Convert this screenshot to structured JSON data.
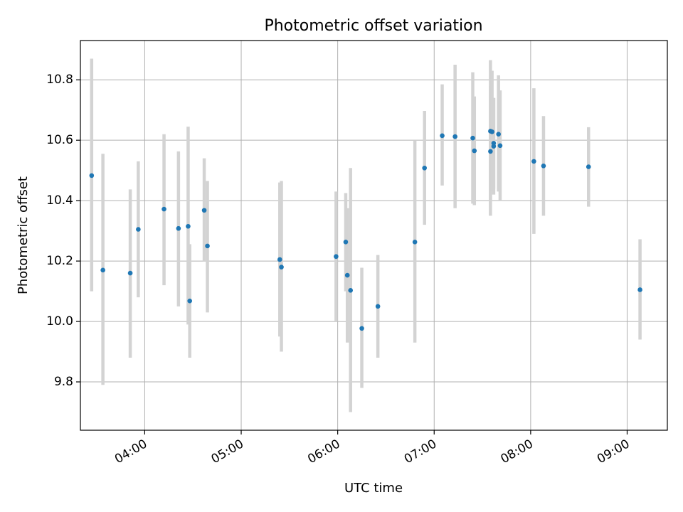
{
  "chart_data": {
    "type": "scatter",
    "title": "Photometric offset variation",
    "xlabel": "UTC time",
    "ylabel": "Photometric offset",
    "x_tick_labels": [
      "04:00",
      "05:00",
      "06:00",
      "07:00",
      "08:00",
      "09:00"
    ],
    "y_tick_labels": [
      "9.8",
      "10.0",
      "10.2",
      "10.4",
      "10.6",
      "10.8"
    ],
    "x_range": [
      "03:20",
      "09:25"
    ],
    "ylim": [
      9.64,
      10.93
    ],
    "grid": true,
    "marker_color": "#1f77b4",
    "errorbar_color": "#d3d3d3",
    "points": [
      {
        "x": "03:27",
        "y": 10.483,
        "ylo": 10.1,
        "yhi": 10.87
      },
      {
        "x": "03:34",
        "y": 10.17,
        "ylo": 9.79,
        "yhi": 10.555
      },
      {
        "x": "03:51",
        "y": 10.16,
        "ylo": 9.88,
        "yhi": 10.437
      },
      {
        "x": "03:56",
        "y": 10.305,
        "ylo": 10.08,
        "yhi": 10.53
      },
      {
        "x": "04:12",
        "y": 10.372,
        "ylo": 10.12,
        "yhi": 10.62
      },
      {
        "x": "04:21",
        "y": 10.308,
        "ylo": 10.05,
        "yhi": 10.563
      },
      {
        "x": "04:27",
        "y": 10.315,
        "ylo": 9.99,
        "yhi": 10.645
      },
      {
        "x": "04:28",
        "y": 10.068,
        "ylo": 9.88,
        "yhi": 10.256
      },
      {
        "x": "04:37",
        "y": 10.368,
        "ylo": 10.2,
        "yhi": 10.54
      },
      {
        "x": "04:39",
        "y": 10.25,
        "ylo": 10.03,
        "yhi": 10.465
      },
      {
        "x": "05:24",
        "y": 10.205,
        "ylo": 9.95,
        "yhi": 10.46
      },
      {
        "x": "05:25",
        "y": 10.18,
        "ylo": 9.9,
        "yhi": 10.465
      },
      {
        "x": "05:59",
        "y": 10.215,
        "ylo": 10.0,
        "yhi": 10.43
      },
      {
        "x": "06:05",
        "y": 10.263,
        "ylo": 10.1,
        "yhi": 10.425
      },
      {
        "x": "06:06",
        "y": 10.153,
        "ylo": 9.93,
        "yhi": 10.375
      },
      {
        "x": "06:08",
        "y": 10.103,
        "ylo": 9.7,
        "yhi": 10.508
      },
      {
        "x": "06:15",
        "y": 9.977,
        "ylo": 9.78,
        "yhi": 10.178
      },
      {
        "x": "06:25",
        "y": 10.05,
        "ylo": 9.88,
        "yhi": 10.22
      },
      {
        "x": "06:48",
        "y": 10.263,
        "ylo": 9.93,
        "yhi": 10.6
      },
      {
        "x": "06:54",
        "y": 10.508,
        "ylo": 10.32,
        "yhi": 10.697
      },
      {
        "x": "07:05",
        "y": 10.615,
        "ylo": 10.45,
        "yhi": 10.785
      },
      {
        "x": "07:13",
        "y": 10.612,
        "ylo": 10.375,
        "yhi": 10.85
      },
      {
        "x": "07:24",
        "y": 10.607,
        "ylo": 10.39,
        "yhi": 10.825
      },
      {
        "x": "07:25",
        "y": 10.565,
        "ylo": 10.385,
        "yhi": 10.745
      },
      {
        "x": "07:35",
        "y": 10.63,
        "ylo": 10.4,
        "yhi": 10.865
      },
      {
        "x": "07:35",
        "y": 10.563,
        "ylo": 10.35,
        "yhi": 10.78
      },
      {
        "x": "07:36",
        "y": 10.628,
        "ylo": 10.43,
        "yhi": 10.83
      },
      {
        "x": "07:37",
        "y": 10.59,
        "ylo": 10.44,
        "yhi": 10.74
      },
      {
        "x": "07:37",
        "y": 10.58,
        "ylo": 10.42,
        "yhi": 10.74
      },
      {
        "x": "07:40",
        "y": 10.62,
        "ylo": 10.43,
        "yhi": 10.815
      },
      {
        "x": "07:41",
        "y": 10.582,
        "ylo": 10.4,
        "yhi": 10.765
      },
      {
        "x": "08:02",
        "y": 10.53,
        "ylo": 10.29,
        "yhi": 10.772
      },
      {
        "x": "08:08",
        "y": 10.515,
        "ylo": 10.35,
        "yhi": 10.68
      },
      {
        "x": "08:36",
        "y": 10.512,
        "ylo": 10.38,
        "yhi": 10.643
      },
      {
        "x": "09:08",
        "y": 10.105,
        "ylo": 9.94,
        "yhi": 10.272
      }
    ]
  }
}
